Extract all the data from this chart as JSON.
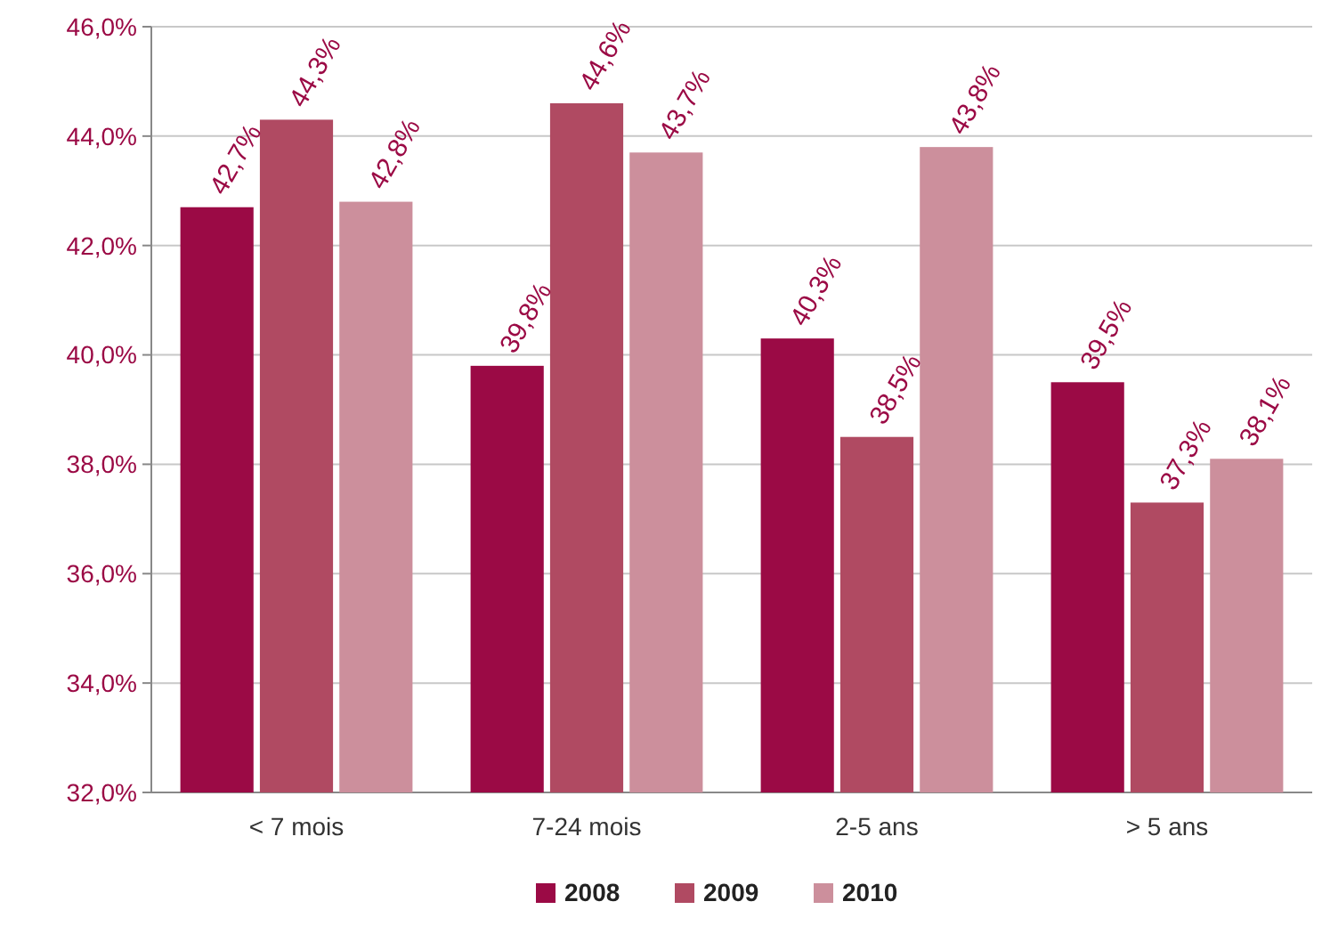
{
  "chart_data": {
    "type": "bar",
    "categories": [
      "< 7 mois",
      "7-24 mois",
      "2-5 ans",
      "> 5 ans"
    ],
    "series": [
      {
        "name": "2008",
        "color": "#9b0a45",
        "values": [
          42.7,
          39.8,
          40.3,
          39.5
        ],
        "value_labels": [
          "42,7%",
          "39,8%",
          "40,3%",
          "39,5%"
        ]
      },
      {
        "name": "2009",
        "color": "#b04a62",
        "values": [
          44.3,
          44.6,
          38.5,
          37.3
        ],
        "value_labels": [
          "44,3%",
          "44,6%",
          "38,5%",
          "37,3%"
        ]
      },
      {
        "name": "2010",
        "color": "#cc8f9c",
        "values": [
          42.8,
          43.7,
          43.8,
          38.1
        ],
        "value_labels": [
          "42,8%",
          "43,7%",
          "43,8%",
          "38,1%"
        ]
      }
    ],
    "ylim": [
      32,
      46
    ],
    "yticks": [
      {
        "value": 32,
        "label": "32,0%"
      },
      {
        "value": 34,
        "label": "34,0%"
      },
      {
        "value": 36,
        "label": "36,0%"
      },
      {
        "value": 38,
        "label": "38,0%"
      },
      {
        "value": 40,
        "label": "40,0%"
      },
      {
        "value": 42,
        "label": "42,0%"
      },
      {
        "value": 44,
        "label": "44,0%"
      },
      {
        "value": 46,
        "label": "46,0%"
      }
    ],
    "grid": "y",
    "legend": "bottom"
  }
}
